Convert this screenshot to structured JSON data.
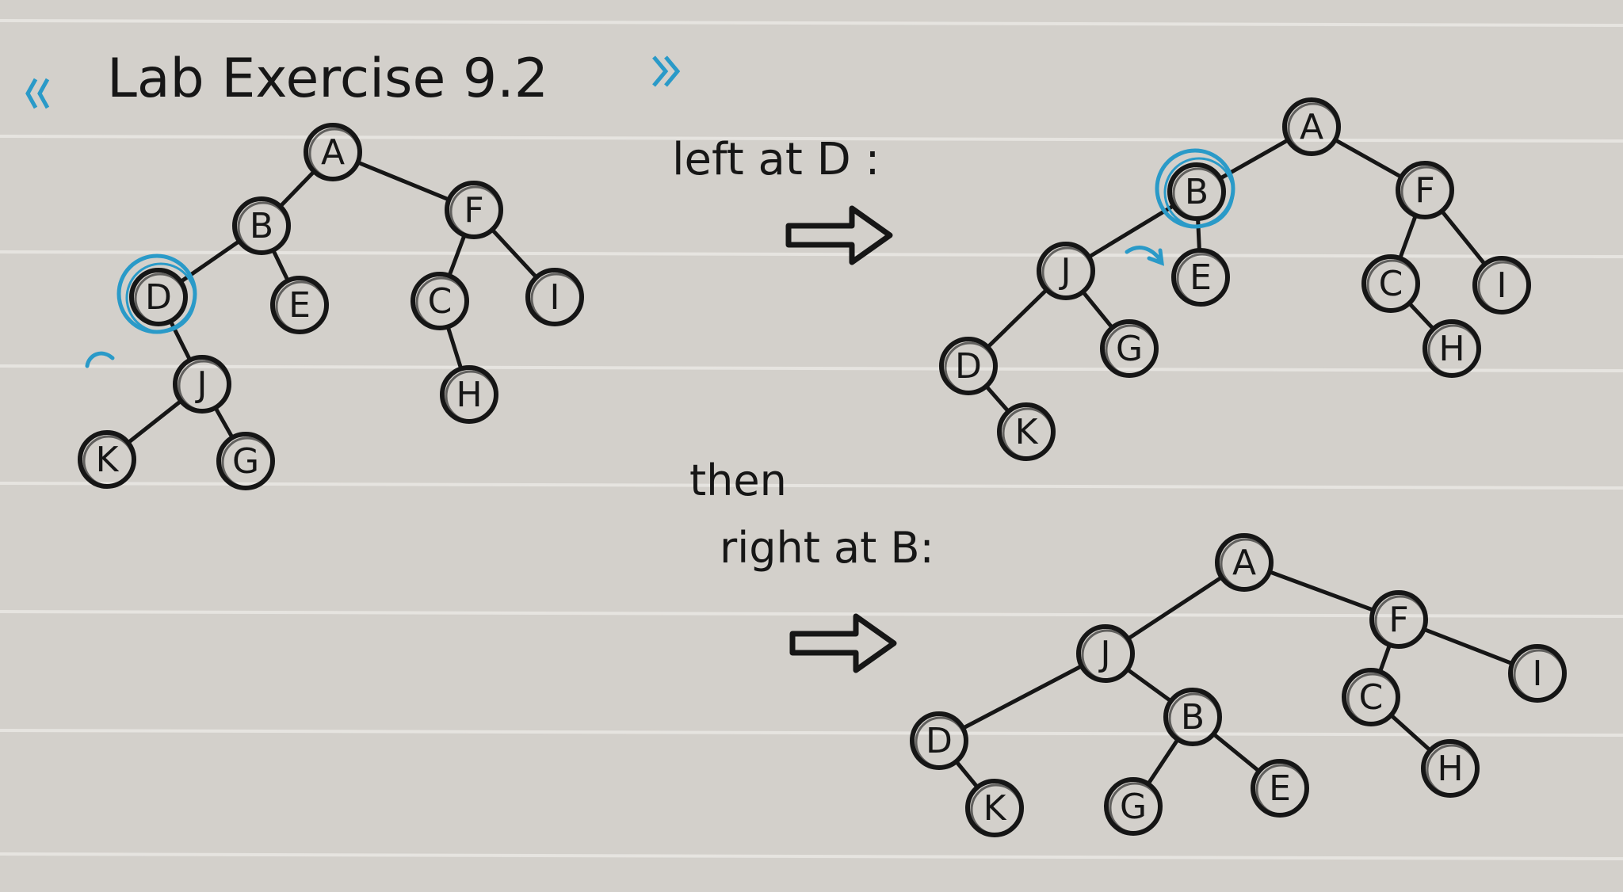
{
  "page": {
    "colors": {
      "paper": "#d3d0cb",
      "rule": "#e6e4e0",
      "ink": "#161616",
      "highlight": "#2a9ac8"
    },
    "title": {
      "open": "《",
      "text": "Lab Exercise 9.2",
      "close": "》"
    }
  },
  "steps": [
    {
      "id": "original",
      "label": ""
    },
    {
      "id": "left",
      "label": "left at D :"
    },
    {
      "id": "right",
      "label_lines": [
        "then",
        "right at B:"
      ]
    }
  ],
  "trees": [
    {
      "id": "original",
      "nodes": [
        "A",
        "B",
        "F",
        "D",
        "E",
        "C",
        "I",
        "J",
        "H",
        "K",
        "G"
      ],
      "edges": [
        [
          "A",
          "B"
        ],
        [
          "A",
          "F"
        ],
        [
          "B",
          "D"
        ],
        [
          "B",
          "E"
        ],
        [
          "F",
          "C"
        ],
        [
          "F",
          "I"
        ],
        [
          "D",
          "J"
        ],
        [
          "C",
          "H"
        ],
        [
          "J",
          "K"
        ],
        [
          "J",
          "G"
        ]
      ],
      "highlighted": [
        "D"
      ]
    },
    {
      "id": "after-left-rotation",
      "nodes": [
        "A",
        "B",
        "F",
        "J",
        "E",
        "C",
        "I",
        "D",
        "G",
        "H",
        "K"
      ],
      "edges": [
        [
          "A",
          "B"
        ],
        [
          "A",
          "F"
        ],
        [
          "B",
          "J"
        ],
        [
          "B",
          "E"
        ],
        [
          "F",
          "C"
        ],
        [
          "F",
          "I"
        ],
        [
          "J",
          "D"
        ],
        [
          "J",
          "G"
        ],
        [
          "C",
          "H"
        ],
        [
          "D",
          "K"
        ]
      ],
      "highlighted": [
        "B"
      ]
    },
    {
      "id": "after-right-rotation",
      "nodes": [
        "A",
        "J",
        "F",
        "D",
        "B",
        "C",
        "I",
        "K",
        "G",
        "E",
        "H"
      ],
      "edges": [
        [
          "A",
          "J"
        ],
        [
          "A",
          "F"
        ],
        [
          "J",
          "D"
        ],
        [
          "J",
          "B"
        ],
        [
          "F",
          "C"
        ],
        [
          "F",
          "I"
        ],
        [
          "D",
          "K"
        ],
        [
          "B",
          "G"
        ],
        [
          "B",
          "E"
        ],
        [
          "C",
          "H"
        ]
      ],
      "highlighted": []
    }
  ]
}
